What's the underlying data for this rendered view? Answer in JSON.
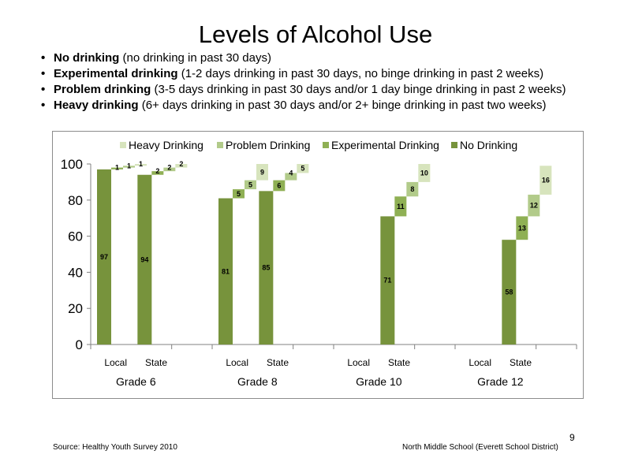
{
  "slide": {
    "title": "Levels of Alcohol Use",
    "definitions": [
      {
        "term": "No drinking",
        "desc": " (no drinking in past 30 days)"
      },
      {
        "term": "Experimental  drinking",
        "desc": " (1-2 days drinking in past 30 days, no binge drinking in past 2 weeks)"
      },
      {
        "term": "Problem drinking",
        "desc": " (3-5 days drinking in past 30 days and/or 1 day binge drinking in past 2 weeks)"
      },
      {
        "term": "Heavy drinking",
        "desc": " (6+ days drinking in past 30 days and/or 2+ binge drinking in past two weeks)"
      }
    ],
    "source": "Source: Healthy Youth Survey 2010",
    "school": "North Middle  School (Everett School District)",
    "page_number": "9"
  },
  "chart_data": {
    "type": "bar",
    "stacking": "waterfall",
    "groups": [
      "Grade 6",
      "Grade 8",
      "Grade 10",
      "Grade 12"
    ],
    "categories": [
      "Local",
      "State",
      "Local",
      "State",
      "Local",
      "State",
      "Local",
      "State"
    ],
    "ylim": [
      0,
      100
    ],
    "yticks": [
      0,
      20,
      40,
      60,
      80,
      100
    ],
    "legend_position": "top",
    "series": [
      {
        "name": "No Drinking",
        "color": "#77933c",
        "values": [
          97,
          94,
          81,
          85,
          null,
          71,
          null,
          58
        ]
      },
      {
        "name": "Experimental Drinking",
        "color": "#8fb054",
        "values": [
          1,
          2,
          5,
          6,
          null,
          11,
          null,
          13
        ]
      },
      {
        "name": "Problem Drinking",
        "color": "#b2cb8a",
        "values": [
          1,
          2,
          5,
          4,
          null,
          8,
          null,
          12
        ]
      },
      {
        "name": "Heavy Drinking",
        "color": "#d7e4bd",
        "values": [
          1,
          2,
          9,
          5,
          null,
          10,
          null,
          16
        ]
      }
    ],
    "legend_order": [
      3,
      2,
      1,
      0
    ]
  }
}
